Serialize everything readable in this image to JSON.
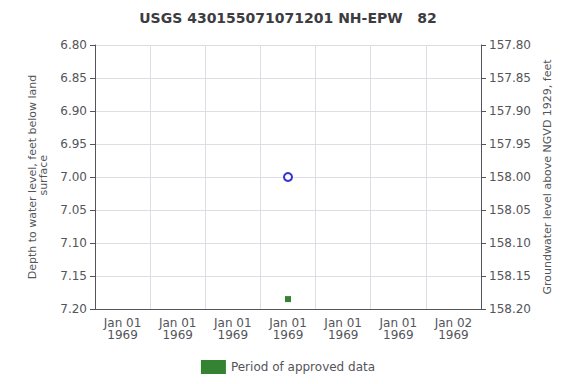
{
  "chart_data": {
    "type": "scatter",
    "title": "USGS 430155071071201 NH-EPW   82",
    "ylabel": "Depth to water level, feet below land\n surface",
    "y2label": "Groundwater level above NGVD 1929, feet",
    "categories": [
      "Jan 01\n1969",
      "Jan 01\n1969",
      "Jan 01\n1969",
      "Jan 01\n1969",
      "Jan 01\n1969",
      "Jan 01\n1969",
      "Jan 02\n1969"
    ],
    "series": [
      {
        "values": [
          null,
          null,
          null,
          7.0,
          null,
          null,
          null
        ],
        "color": "#0000cc",
        "marker": "circle-open"
      },
      {
        "name": "Period of approved data",
        "values": [
          null,
          null,
          null,
          7.185,
          null,
          null,
          null
        ],
        "color": "#006400",
        "marker": "square"
      }
    ],
    "ylim": [
      7.2,
      6.8
    ],
    "yticks": [
      {
        "value": 6.8,
        "label": "6.80"
      },
      6.85,
      {
        "value": 6.9,
        "label": "6.90"
      },
      6.95,
      {
        "value": 7.0,
        "label": "7.00"
      },
      7.05,
      {
        "value": 7.1,
        "label": "7.10"
      },
      7.15,
      {
        "value": 7.2,
        "label": "7.20"
      }
    ],
    "y2lim": [
      158.2,
      157.8
    ],
    "y2ticks": [
      {
        "value": 157.8,
        "label": "157.80"
      },
      157.85,
      {
        "value": 157.9,
        "label": "157.90"
      },
      157.95,
      {
        "value": 158.0,
        "label": "158.00"
      },
      158.05,
      {
        "value": 158.1,
        "label": "158.10"
      },
      158.15,
      {
        "value": 158.2,
        "label": "158.20"
      }
    ],
    "grid": true,
    "legend": "bottom"
  }
}
